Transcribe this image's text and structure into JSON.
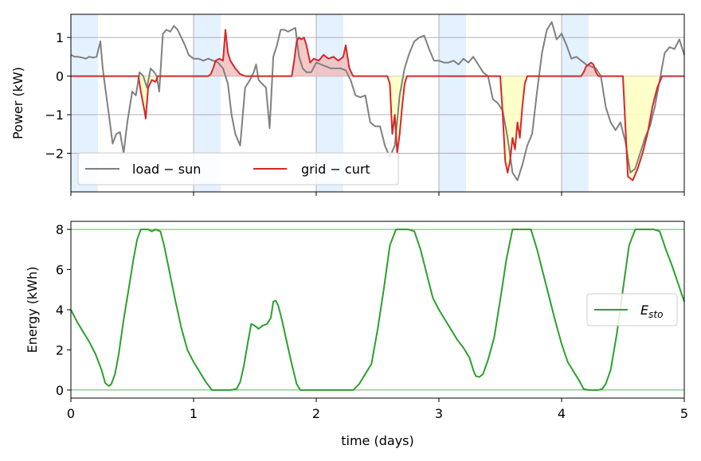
{
  "chart_data": [
    {
      "type": "line",
      "xlim": [
        0,
        5
      ],
      "ylim": [
        -3,
        1.6
      ],
      "ylabel": "Power (kW)",
      "xlabel": "",
      "xticks": [
        0,
        1,
        2,
        3,
        4,
        5
      ],
      "yticks": [
        1,
        0,
        -1,
        -2
      ],
      "ytick_labels": [
        "1",
        "0",
        "−1",
        "−2"
      ],
      "grid": "horizontal",
      "legend_position": "lower-left",
      "night_bands": [
        [
          0,
          0.22
        ],
        [
          1,
          1.22
        ],
        [
          2,
          2.22
        ],
        [
          3,
          3.22
        ],
        [
          4,
          4.22
        ]
      ],
      "series": [
        {
          "name": "load − sun",
          "color": "#808080",
          "x": [
            0,
            0.03,
            0.06,
            0.09,
            0.12,
            0.15,
            0.18,
            0.21,
            0.24,
            0.26,
            0.28,
            0.31,
            0.34,
            0.37,
            0.4,
            0.43,
            0.46,
            0.5,
            0.53,
            0.56,
            0.59,
            0.62,
            0.65,
            0.68,
            0.7,
            0.72,
            0.75,
            0.78,
            0.81,
            0.84,
            0.87,
            0.9,
            0.93,
            0.96,
            1.0,
            1.04,
            1.08,
            1.12,
            1.16,
            1.2,
            1.24,
            1.28,
            1.31,
            1.34,
            1.38,
            1.42,
            1.46,
            1.49,
            1.51,
            1.53,
            1.56,
            1.59,
            1.62,
            1.65,
            1.68,
            1.71,
            1.74,
            1.77,
            1.8,
            1.83,
            1.86,
            1.89,
            1.92,
            1.96,
            2.0,
            2.04,
            2.08,
            2.12,
            2.16,
            2.2,
            2.24,
            2.28,
            2.32,
            2.36,
            2.4,
            2.44,
            2.48,
            2.52,
            2.56,
            2.6,
            2.64,
            2.68,
            2.72,
            2.76,
            2.8,
            2.84,
            2.88,
            2.92,
            2.96,
            3.0,
            3.04,
            3.08,
            3.12,
            3.16,
            3.2,
            3.24,
            3.28,
            3.32,
            3.36,
            3.4,
            3.44,
            3.48,
            3.52,
            3.56,
            3.6,
            3.64,
            3.68,
            3.72,
            3.76,
            3.8,
            3.84,
            3.88,
            3.92,
            3.96,
            4.0,
            4.04,
            4.08,
            4.12,
            4.16,
            4.2,
            4.24,
            4.28,
            4.32,
            4.36,
            4.4,
            4.44,
            4.48,
            4.52,
            4.56,
            4.6,
            4.64,
            4.68,
            4.72,
            4.76,
            4.8,
            4.84,
            4.88,
            4.92,
            4.96,
            5.0
          ],
          "y": [
            0.55,
            0.5,
            0.5,
            0.48,
            0.45,
            0.5,
            0.48,
            0.5,
            0.9,
            0.2,
            -0.3,
            -1.0,
            -1.75,
            -1.5,
            -1.45,
            -2.0,
            -1.2,
            -0.4,
            -0.5,
            0.1,
            0.0,
            -0.3,
            0.2,
            0.1,
            0.0,
            -0.4,
            1.1,
            1.2,
            1.15,
            1.3,
            1.2,
            1.0,
            0.8,
            0.55,
            0.45,
            0.45,
            0.4,
            0.45,
            0.4,
            0.35,
            0.2,
            -0.2,
            -1.0,
            -1.5,
            -1.8,
            -0.3,
            -0.1,
            0.1,
            0.3,
            -0.1,
            -0.2,
            -0.3,
            -1.35,
            0.5,
            0.8,
            1.2,
            1.2,
            1.15,
            1.2,
            1.25,
            0.5,
            0.2,
            0.1,
            0.1,
            0.35,
            0.3,
            0.25,
            0.2,
            0.2,
            0.2,
            0.15,
            -0.1,
            -0.5,
            -0.55,
            -0.5,
            -1.2,
            -1.3,
            -1.3,
            -1.8,
            -2.1,
            -1.8,
            -0.5,
            0.2,
            0.6,
            0.9,
            1.0,
            1.05,
            0.7,
            0.4,
            0.4,
            0.35,
            0.35,
            0.4,
            0.3,
            0.45,
            0.35,
            0.5,
            0.3,
            0.1,
            0.0,
            -0.6,
            -0.7,
            -0.9,
            -1.6,
            -2.5,
            -2.7,
            -2.3,
            -1.8,
            -1.5,
            -0.4,
            0.6,
            1.2,
            1.4,
            0.95,
            1.1,
            0.8,
            0.45,
            0.5,
            0.4,
            0.3,
            0.25,
            0.2,
            0.0,
            -0.8,
            -1.2,
            -1.4,
            -1.2,
            -1.7,
            -2.5,
            -2.4,
            -2.0,
            -1.6,
            -1.3,
            -0.8,
            -0.1,
            0.6,
            0.75,
            0.7,
            0.95,
            0.55
          ]
        },
        {
          "name": "grid − curt",
          "color": "#d62728",
          "x": [
            0,
            0.55,
            0.57,
            0.6,
            0.61,
            0.63,
            0.66,
            0.69,
            0.71,
            0.73,
            1.12,
            1.14,
            1.16,
            1.18,
            1.21,
            1.24,
            1.26,
            1.28,
            1.3,
            1.34,
            1.38,
            1.42,
            1.8,
            1.82,
            1.84,
            1.86,
            1.88,
            1.9,
            1.92,
            1.95,
            1.98,
            2.02,
            2.06,
            2.1,
            2.14,
            2.18,
            2.22,
            2.24,
            2.27,
            2.3,
            2.58,
            2.6,
            2.62,
            2.64,
            2.66,
            2.68,
            2.7,
            2.72,
            2.74,
            2.76,
            2.8,
            3.5,
            3.52,
            3.54,
            3.56,
            3.58,
            3.6,
            3.62,
            3.64,
            3.66,
            3.68,
            3.7,
            3.72,
            3.75,
            4.16,
            4.18,
            4.2,
            4.22,
            4.24,
            4.26,
            4.28,
            4.3,
            4.5,
            4.54,
            4.58,
            4.62,
            4.66,
            4.7,
            4.74,
            4.78,
            4.82,
            4.86,
            5.0
          ],
          "y": [
            0,
            0,
            -0.4,
            -0.9,
            -1.1,
            -0.3,
            -0.1,
            -0.15,
            0.0,
            0,
            0,
            0.05,
            0.2,
            0.4,
            0.45,
            0.4,
            1.2,
            0.6,
            0.4,
            0.2,
            0.05,
            0,
            0,
            0.4,
            0.9,
            1.0,
            0.95,
            1.0,
            0.8,
            0.35,
            0.45,
            0.4,
            0.55,
            0.45,
            0.5,
            0.4,
            0.5,
            0.8,
            0.2,
            0,
            0,
            -0.2,
            -1.5,
            -1.0,
            -2.0,
            -1.5,
            -0.8,
            -0.2,
            0.0,
            0,
            0,
            0,
            -1.0,
            -2.2,
            -2.5,
            -2.2,
            -1.6,
            -1.9,
            -1.2,
            -1.6,
            -0.8,
            -0.2,
            0.0,
            0,
            0,
            0.1,
            0.25,
            0.3,
            0.35,
            0.3,
            0.1,
            0,
            0,
            -2.6,
            -2.7,
            -2.4,
            -2.0,
            -1.5,
            -0.8,
            -0.3,
            0.0,
            0,
            0
          ]
        }
      ]
    },
    {
      "type": "line",
      "xlim": [
        0,
        5
      ],
      "ylim": [
        -0.4,
        8.4
      ],
      "xlabel": "time (days)",
      "ylabel": "Energy (kWh)",
      "xticks": [
        0,
        1,
        2,
        3,
        4,
        5
      ],
      "yticks": [
        0,
        2,
        4,
        6,
        8
      ],
      "ref_lines": [
        0,
        8
      ],
      "legend_position": "center-right",
      "series": [
        {
          "name": "E_sto",
          "label_main": "E",
          "label_sub": "sto",
          "color": "#2ca02c",
          "x": [
            0,
            0.05,
            0.1,
            0.15,
            0.2,
            0.25,
            0.28,
            0.31,
            0.33,
            0.36,
            0.39,
            0.43,
            0.47,
            0.51,
            0.54,
            0.57,
            0.6,
            0.63,
            0.66,
            0.69,
            0.71,
            0.73,
            0.76,
            0.8,
            0.85,
            0.9,
            0.95,
            1.0,
            1.05,
            1.1,
            1.15,
            1.2,
            1.25,
            1.3,
            1.35,
            1.38,
            1.41,
            1.44,
            1.47,
            1.5,
            1.53,
            1.56,
            1.6,
            1.63,
            1.65,
            1.67,
            1.69,
            1.72,
            1.76,
            1.8,
            1.84,
            1.87,
            1.89,
            1.92,
            2.0,
            2.1,
            2.2,
            2.3,
            2.35,
            2.4,
            2.45,
            2.5,
            2.55,
            2.6,
            2.65,
            2.7,
            2.75,
            2.8,
            2.85,
            2.9,
            2.95,
            3.0,
            3.05,
            3.1,
            3.15,
            3.2,
            3.25,
            3.28,
            3.3,
            3.33,
            3.36,
            3.4,
            3.45,
            3.5,
            3.55,
            3.6,
            3.65,
            3.7,
            3.75,
            3.8,
            3.85,
            3.9,
            3.95,
            4.0,
            4.05,
            4.1,
            4.15,
            4.18,
            4.22,
            4.27,
            4.3,
            4.33,
            4.36,
            4.4,
            4.45,
            4.5,
            4.55,
            4.6,
            4.65,
            4.7,
            4.75,
            4.8,
            4.85,
            4.9,
            4.95,
            5.0
          ],
          "y": [
            4.0,
            3.4,
            2.9,
            2.4,
            1.8,
            1.0,
            0.35,
            0.2,
            0.3,
            0.8,
            1.8,
            3.5,
            5.0,
            6.5,
            7.5,
            8.0,
            8.0,
            8.0,
            7.9,
            8.0,
            7.95,
            7.9,
            7.2,
            6.0,
            4.5,
            3.1,
            2.0,
            1.4,
            0.9,
            0.4,
            0.0,
            0.0,
            0.0,
            0.0,
            0.05,
            0.4,
            1.2,
            2.3,
            3.3,
            3.2,
            3.05,
            3.2,
            3.3,
            3.6,
            4.4,
            4.45,
            4.2,
            3.5,
            2.4,
            1.3,
            0.3,
            0.0,
            0.0,
            0.0,
            0.0,
            0.0,
            0.0,
            0.0,
            0.3,
            0.8,
            1.3,
            3.0,
            5.0,
            7.2,
            8.0,
            8.0,
            8.0,
            7.9,
            7.0,
            5.8,
            4.6,
            4.0,
            3.5,
            3.0,
            2.5,
            2.1,
            1.6,
            1.0,
            0.7,
            0.65,
            0.8,
            1.5,
            2.6,
            4.5,
            6.5,
            8.0,
            8.0,
            8.0,
            8.0,
            7.0,
            5.8,
            4.6,
            3.4,
            2.3,
            1.4,
            0.9,
            0.4,
            0.05,
            0.0,
            0.0,
            0.0,
            0.05,
            0.3,
            1.0,
            2.8,
            5.0,
            7.2,
            8.0,
            8.0,
            8.0,
            8.0,
            7.9,
            7.0,
            6.2,
            5.3,
            4.4
          ]
        }
      ]
    }
  ]
}
